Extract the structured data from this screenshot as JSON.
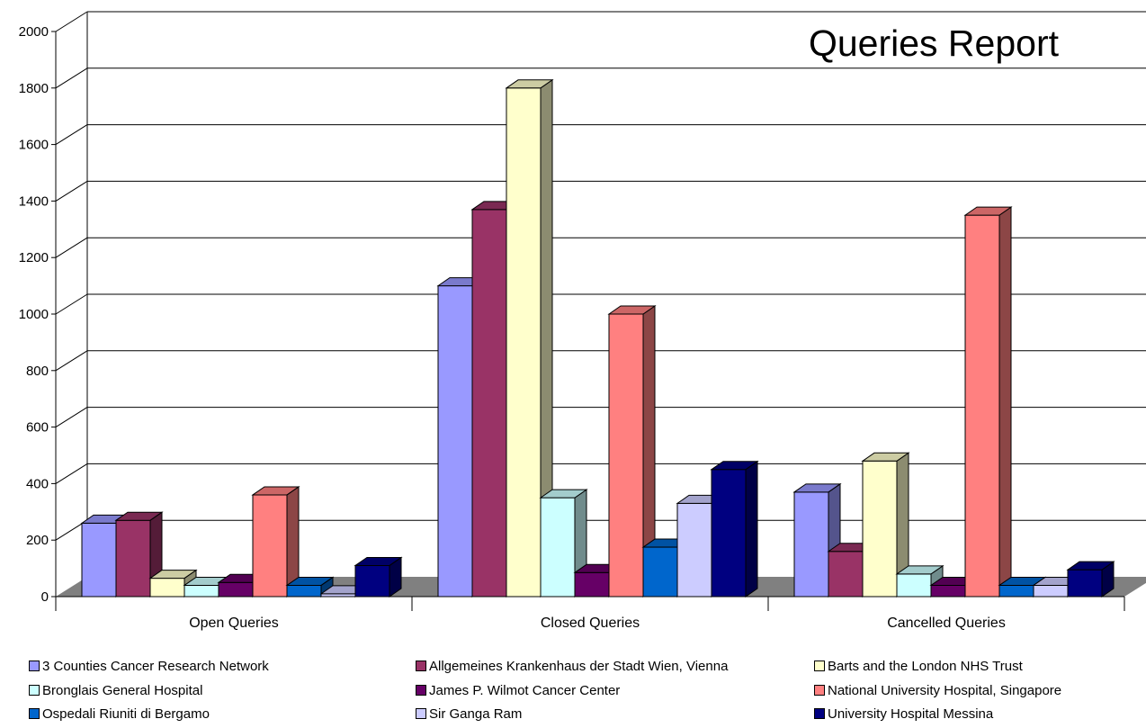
{
  "chart_data": {
    "type": "bar",
    "title": "Queries Report",
    "categories": [
      "Open Queries",
      "Closed Queries",
      "Cancelled Queries"
    ],
    "ylim": [
      0,
      2000
    ],
    "yticks": [
      "0",
      "200",
      "400",
      "600",
      "800",
      "1000",
      "1200",
      "1400",
      "1600",
      "1800",
      "2000"
    ],
    "grid": true,
    "legend_position": "bottom",
    "series": [
      {
        "name": "3 Counties Cancer Research Network",
        "color": "#9999ff",
        "values": [
          260,
          1100,
          370
        ]
      },
      {
        "name": "Allgemeines Krankenhaus der Stadt Wien, Vienna",
        "color": "#993366",
        "values": [
          270,
          1370,
          160
        ]
      },
      {
        "name": "Barts and the London NHS Trust",
        "color": "#ffffcc",
        "values": [
          65,
          1800,
          480
        ]
      },
      {
        "name": "Bronglais General Hospital",
        "color": "#ccffff",
        "values": [
          40,
          350,
          80
        ]
      },
      {
        "name": "James P. Wilmot Cancer Center",
        "color": "#660066",
        "values": [
          50,
          85,
          40
        ]
      },
      {
        "name": "National University Hospital, Singapore",
        "color": "#ff8080",
        "values": [
          360,
          1000,
          1350
        ]
      },
      {
        "name": "Ospedali Riuniti di Bergamo",
        "color": "#0066cc",
        "values": [
          40,
          175,
          40
        ]
      },
      {
        "name": "Sir Ganga Ram",
        "color": "#ccccff",
        "values": [
          10,
          330,
          40
        ]
      },
      {
        "name": "University Hospital Messina",
        "color": "#000080",
        "values": [
          110,
          450,
          95
        ]
      }
    ]
  }
}
